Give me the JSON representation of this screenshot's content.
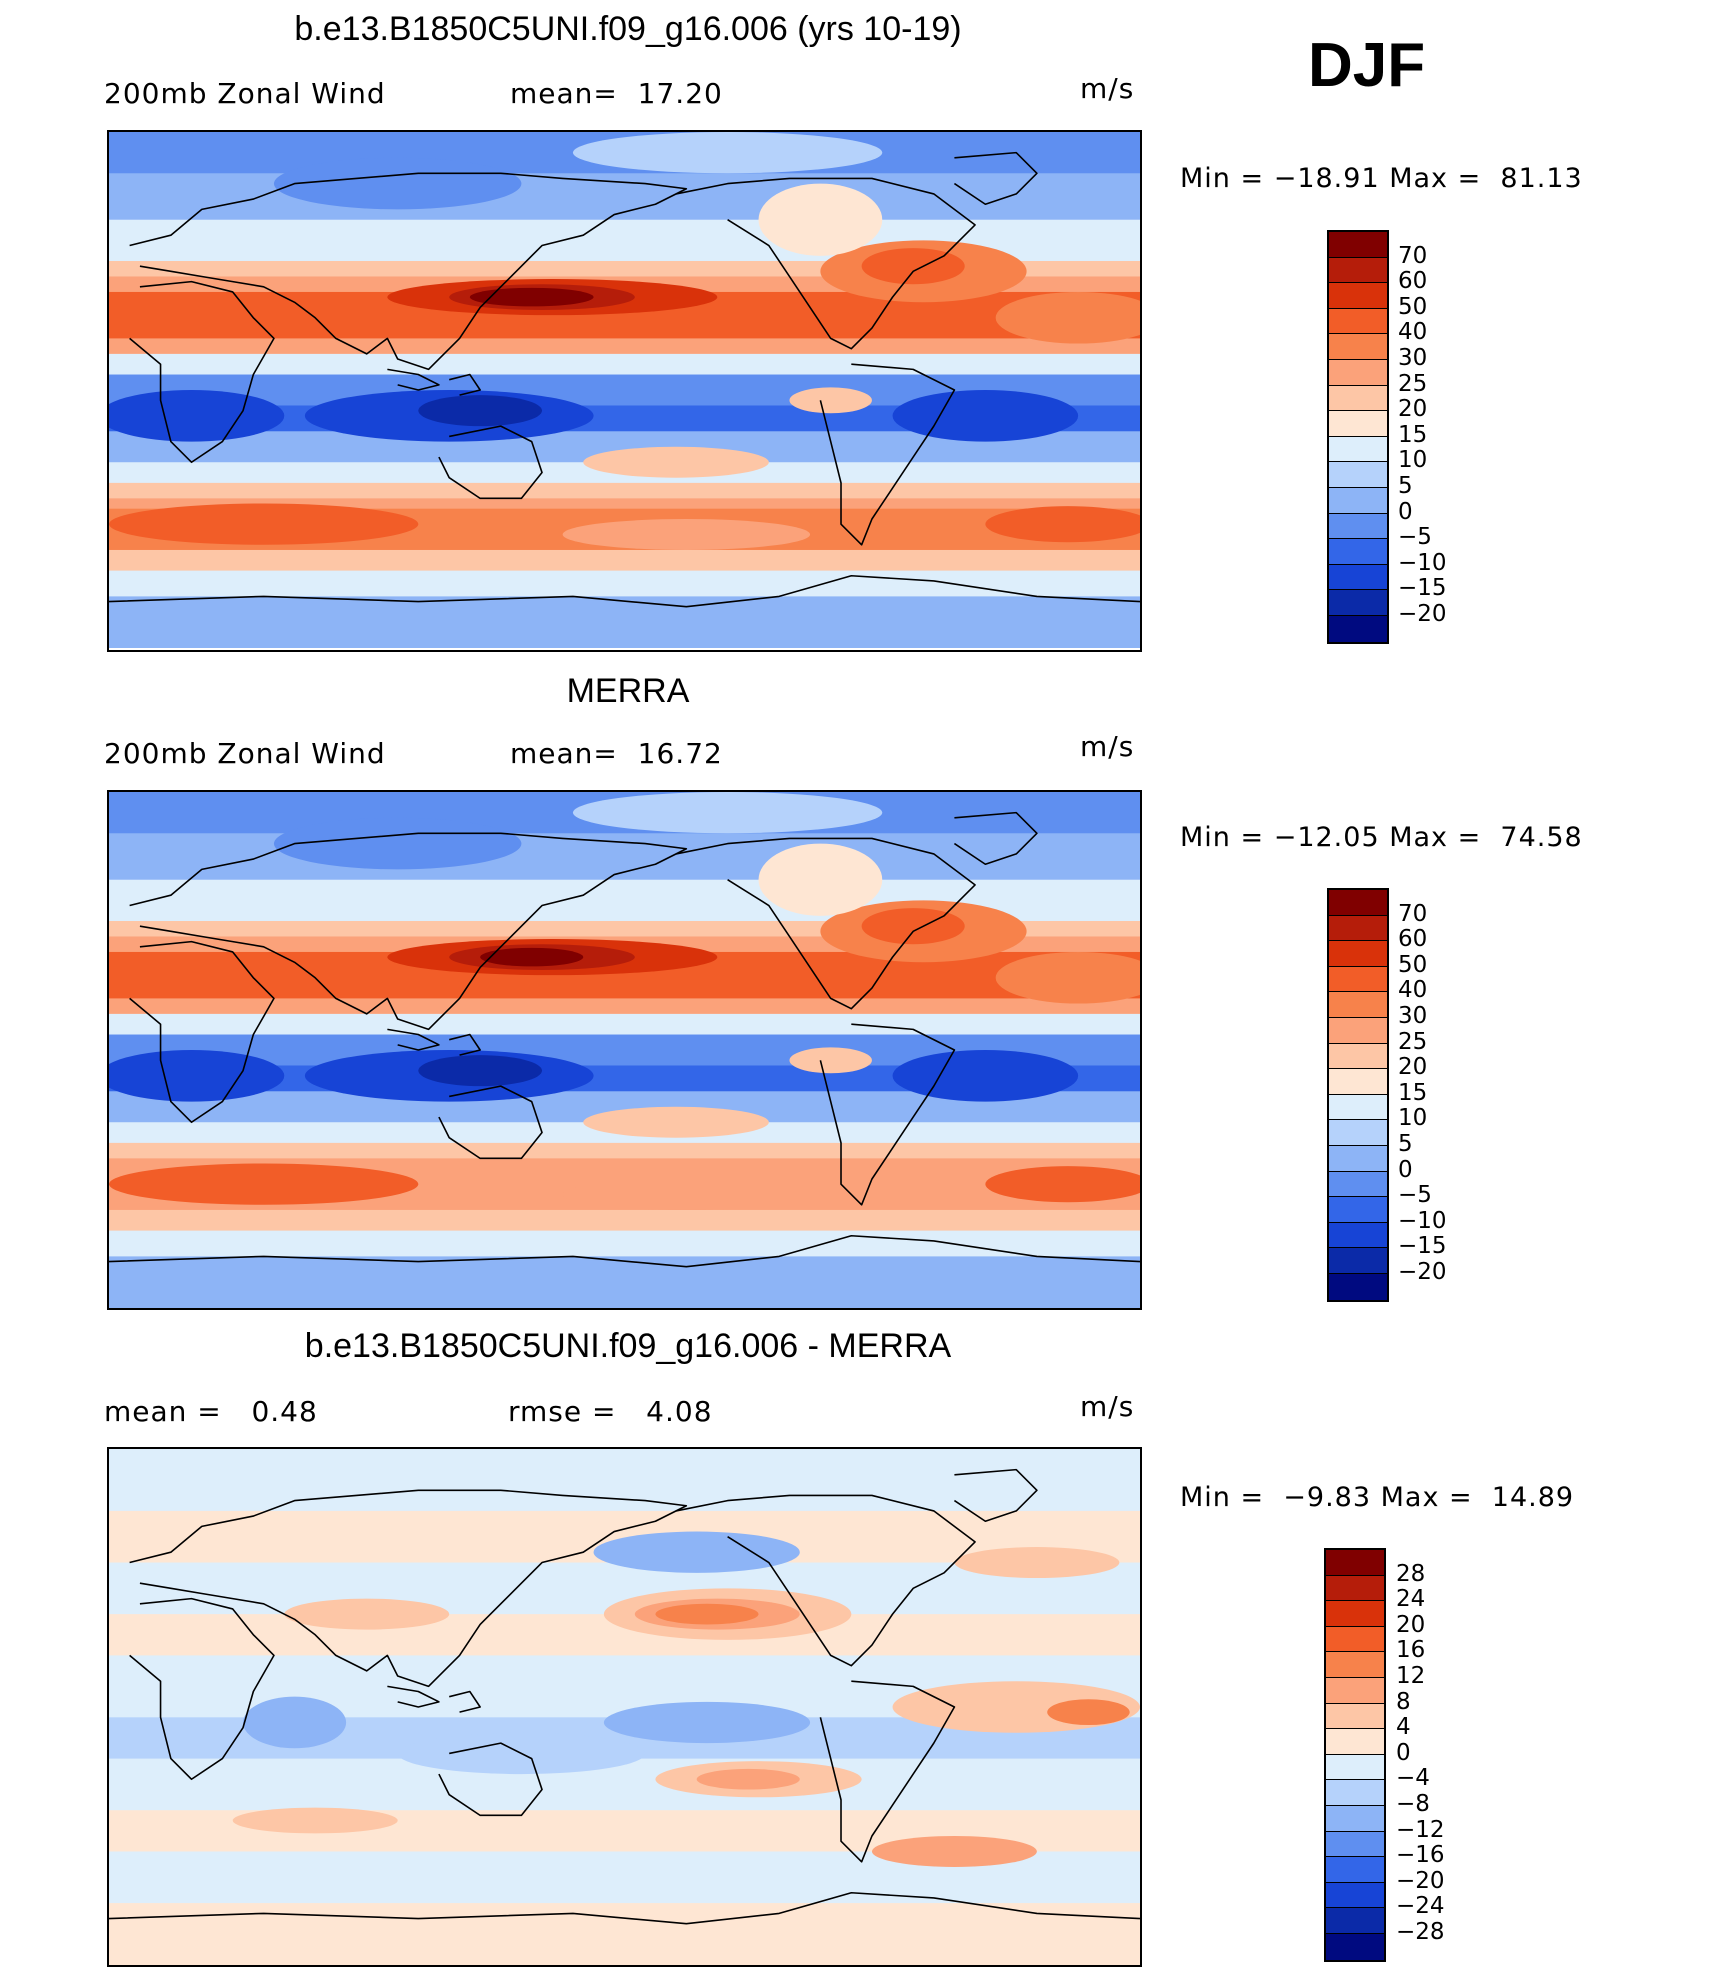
{
  "season": "DJF",
  "panels": [
    {
      "title": "b.e13.B1850C5UNI.f09_g16.006 (yrs 10-19)",
      "left_label": "200mb Zonal Wind",
      "mid_label": "mean=  17.20",
      "units": "m/s",
      "stats": "Min = −18.91 Max =  81.13",
      "scale": "abs",
      "map_name": "model-map"
    },
    {
      "title": "MERRA",
      "left_label": "200mb Zonal Wind",
      "mid_label": "mean=  16.72",
      "units": "m/s",
      "stats": "Min = −12.05 Max =  74.58",
      "scale": "abs",
      "map_name": "obs-map"
    },
    {
      "title": "b.e13.B1850C5UNI.f09_g16.006 - MERRA",
      "left_label": "mean =   0.48",
      "mid_label": "rmse =   4.08",
      "units": "m/s",
      "stats": "Min =  −9.83 Max =  14.89",
      "scale": "diff",
      "map_name": "difference-map"
    }
  ],
  "colorbars": {
    "abs": {
      "labels": [
        "70",
        "60",
        "50",
        "40",
        "30",
        "25",
        "20",
        "15",
        "10",
        "5",
        "0",
        "−5",
        "−10",
        "−15",
        "−20"
      ],
      "colors": [
        "#800000",
        "#b51d0a",
        "#d9320a",
        "#f25d28",
        "#f7824b",
        "#fba27a",
        "#fdc6a6",
        "#fee6d3",
        "#ddeefb",
        "#b5d2fb",
        "#8db4f6",
        "#5f8ff0",
        "#3366e8",
        "#1744d6",
        "#0b2aa8",
        "#000a80"
      ]
    },
    "diff": {
      "labels": [
        "28",
        "24",
        "20",
        "16",
        "12",
        "8",
        "4",
        "0",
        "−4",
        "−8",
        "−12",
        "−16",
        "−20",
        "−24",
        "−28"
      ],
      "colors": [
        "#800000",
        "#b51d0a",
        "#d9320a",
        "#f25d28",
        "#f7824b",
        "#fba27a",
        "#fdc6a6",
        "#fee6d3",
        "#ddeefb",
        "#b5d2fb",
        "#8db4f6",
        "#5f8ff0",
        "#3366e8",
        "#1744d6",
        "#0b2aa8",
        "#000a80"
      ]
    }
  },
  "chart_data": {
    "type": "heatmap",
    "variable": "200mb Zonal Wind",
    "units": "m/s",
    "season": "DJF",
    "plots": [
      {
        "title": "b.e13.B1850C5UNI.f09_g16.006 (yrs 10-19)",
        "mean": 17.2,
        "min": -18.91,
        "max": 81.13,
        "levels": [
          -20,
          -15,
          -10,
          -5,
          0,
          5,
          10,
          15,
          20,
          25,
          30,
          40,
          50,
          60,
          70
        ]
      },
      {
        "title": "MERRA",
        "mean": 16.72,
        "min": -12.05,
        "max": 74.58,
        "levels": [
          -20,
          -15,
          -10,
          -5,
          0,
          5,
          10,
          15,
          20,
          25,
          30,
          40,
          50,
          60,
          70
        ]
      },
      {
        "title": "b.e13.B1850C5UNI.f09_g16.006 - MERRA",
        "mean": 0.48,
        "rmse": 4.08,
        "min": -9.83,
        "max": 14.89,
        "levels": [
          -28,
          -24,
          -20,
          -16,
          -12,
          -8,
          -4,
          0,
          4,
          8,
          12,
          16,
          20,
          24,
          28
        ]
      }
    ]
  }
}
